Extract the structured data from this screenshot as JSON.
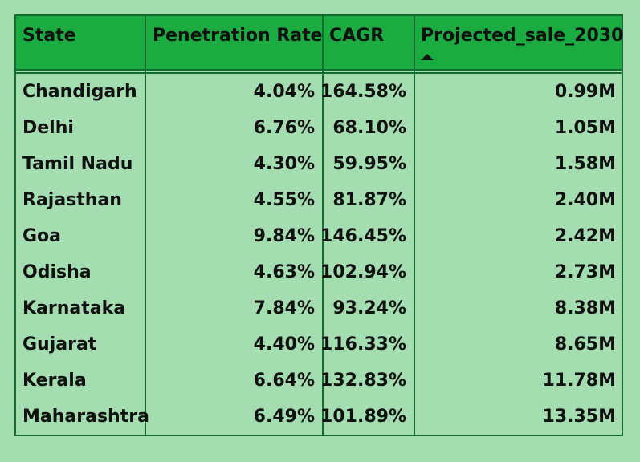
{
  "table": {
    "columns": {
      "state": "State",
      "penetration": "Penetration Rate",
      "cagr": "CAGR",
      "projected": "Projected_sale_2030"
    },
    "sort_icon": "sort-ascending-triangle-icon",
    "rows": [
      {
        "state": "Chandigarh",
        "penetration": "4.04%",
        "cagr": "164.58%",
        "projected": "0.99M"
      },
      {
        "state": "Delhi",
        "penetration": "6.76%",
        "cagr": "68.10%",
        "projected": "1.05M"
      },
      {
        "state": "Tamil Nadu",
        "penetration": "4.30%",
        "cagr": "59.95%",
        "projected": "1.58M"
      },
      {
        "state": "Rajasthan",
        "penetration": "4.55%",
        "cagr": "81.87%",
        "projected": "2.40M"
      },
      {
        "state": "Goa",
        "penetration": "9.84%",
        "cagr": "146.45%",
        "projected": "2.42M"
      },
      {
        "state": "Odisha",
        "penetration": "4.63%",
        "cagr": "102.94%",
        "projected": "2.73M"
      },
      {
        "state": "Karnataka",
        "penetration": "7.84%",
        "cagr": "93.24%",
        "projected": "8.38M"
      },
      {
        "state": "Gujarat",
        "penetration": "4.40%",
        "cagr": "116.33%",
        "projected": "8.65M"
      },
      {
        "state": "Kerala",
        "penetration": "6.64%",
        "cagr": "132.83%",
        "projected": "11.78M"
      },
      {
        "state": "Maharashtra",
        "penetration": "6.49%",
        "cagr": "101.89%",
        "projected": "13.35M"
      }
    ]
  },
  "colors": {
    "background": "#a3ddb0",
    "header": "#1aab41",
    "border": "#166b2f"
  }
}
